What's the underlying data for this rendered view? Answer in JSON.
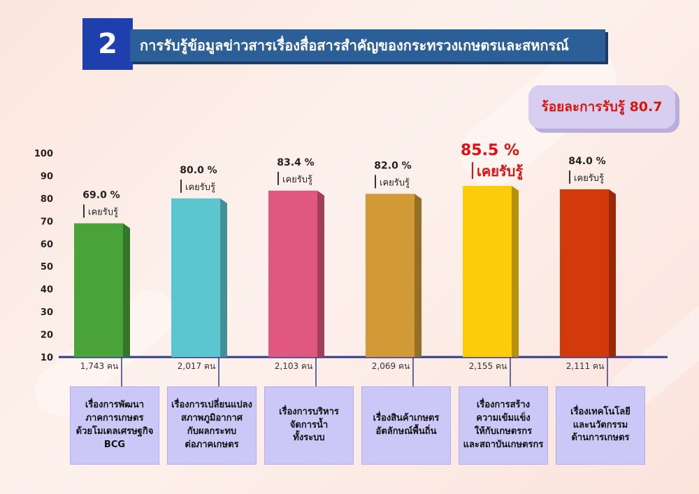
{
  "header": {
    "number": "2",
    "title": "การรับรู้ข้อมูลข่าวสารเรื่องสื่อสารสำคัญของกระทรวงเกษตรและสหกรณ์"
  },
  "overall": {
    "label": "ร้อยละการรับรู้ 80.7"
  },
  "chart_data": {
    "type": "bar",
    "ylim": [
      10,
      100
    ],
    "yticks": [
      10,
      20,
      30,
      40,
      50,
      60,
      70,
      80,
      90,
      100
    ],
    "categories": [
      "เรื่องการพัฒนา\nภาคการเกษตร\nด้วยโมเดลเศรษฐกิจ\nBCG",
      "เรื่องการเปลี่ยนแปลง\nสภาพภูมิอากาศ\nกับผลกระทบ\nต่อภาคเกษตร",
      "เรื่องการบริหาร\nจัดการน้ำ\nทั้งระบบ",
      "เรื่องสินค้าเกษตร\nอัตลักษณ์พื้นถิ่น",
      "เรื่องการสร้าง\nความเข้มแข็ง\nให้กับเกษตรกร\nและสถาบันเกษตรกร",
      "เรื่องเทคโนโลยี\nและนวัตกรรม\nด้านการเกษตร"
    ],
    "values": [
      69.0,
      80.0,
      83.4,
      82.0,
      85.5,
      84.0
    ],
    "value_labels": [
      "69.0 %",
      "80.0 %",
      "83.4 %",
      "82.0 %",
      "85.5 %",
      "84.0 %"
    ],
    "sub_label": "เคยรับรู้",
    "counts": [
      "1,743 คน",
      "2,017 คน",
      "2,103 คน",
      "2,069 คน",
      "2,155 คน",
      "2,111 คน"
    ],
    "colors": [
      "#4aa339",
      "#5bc6cf",
      "#e0587e",
      "#d19a36",
      "#fccc0a",
      "#d23a0c"
    ],
    "highlight_index": 4,
    "highlight_color": "#e10f0f",
    "axis_color": "#2f3a8f"
  }
}
